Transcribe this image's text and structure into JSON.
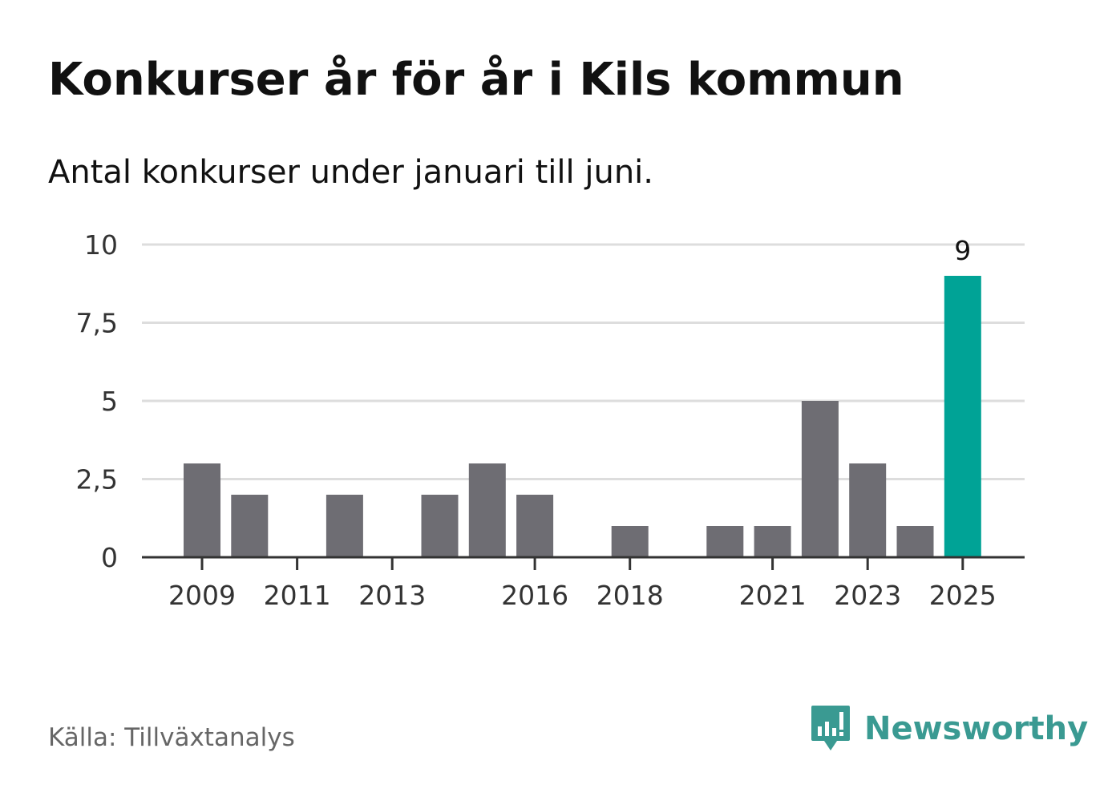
{
  "header": {
    "title": "Konkurser år för år i Kils kommun",
    "subtitle": "Antal konkurser under januari till juni."
  },
  "footer": {
    "source": "Källa: Tillväxtanalys",
    "brand": "Newsworthy"
  },
  "colors": {
    "bar": "#6e6d73",
    "highlight": "#00a396",
    "gridline": "#dddddd",
    "axis": "#333333",
    "brand": "#3a9a92"
  },
  "chart_data": {
    "type": "bar",
    "categories": [
      "2009",
      "2010",
      "2011",
      "2012",
      "2013",
      "2014",
      "2015",
      "2016",
      "2017",
      "2018",
      "2019",
      "2020",
      "2021",
      "2022",
      "2023",
      "2024",
      "2025"
    ],
    "values": [
      3,
      2,
      0,
      2,
      0,
      2,
      3,
      2,
      0,
      1,
      0,
      1,
      1,
      5,
      3,
      1,
      9
    ],
    "x_tick_labels": [
      "2009",
      "2011",
      "2013",
      "2016",
      "2018",
      "2021",
      "2023",
      "2025"
    ],
    "y_ticks": [
      0,
      2.5,
      5,
      7.5,
      10
    ],
    "y_tick_labels": [
      "0",
      "2,5",
      "5",
      "7,5",
      "10"
    ],
    "ylim": [
      0,
      10
    ],
    "highlight_category": "2025",
    "data_labels": [
      {
        "category": "2025",
        "text": "9"
      }
    ],
    "grid": true,
    "legend": "none"
  }
}
